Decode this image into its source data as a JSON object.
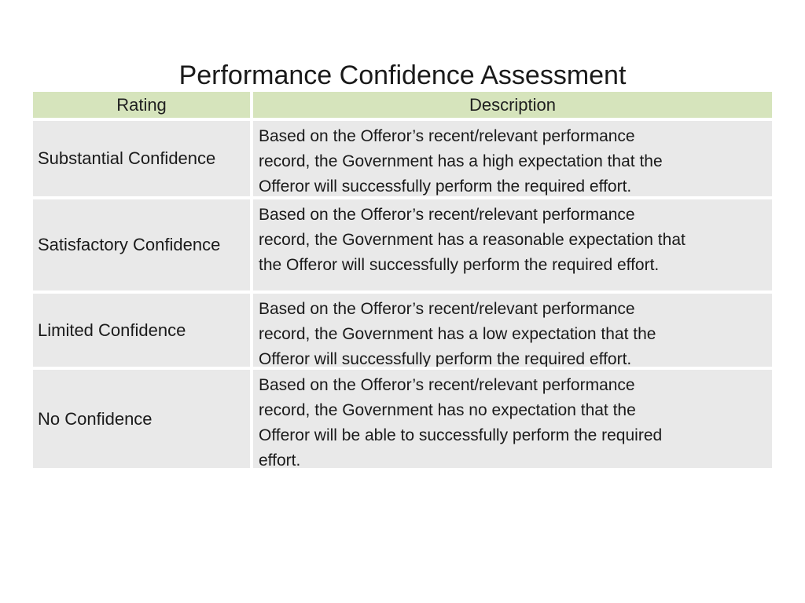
{
  "slide": {
    "title": "Performance Confidence Assessment",
    "table": {
      "headers": {
        "rating": "Rating",
        "description": "Description"
      },
      "rows": [
        {
          "rating": "Substantial Confidence",
          "description": "Based on the Offeror’s recent/relevant performance\nrecord, the Government has a high expectation that the\nOfferor will successfully perform the required effort."
        },
        {
          "rating": "Satisfactory Confidence",
          "description": "Based on the Offeror’s recent/relevant performance\nrecord, the Government has a reasonable expectation that\nthe Offeror will successfully perform the required effort."
        },
        {
          "rating": "Limited Confidence",
          "description": "Based on the Offeror’s recent/relevant performance\nrecord, the Government has a low expectation that the\nOfferor will successfully perform the required effort."
        },
        {
          "rating": "No Confidence",
          "description": "Based on the Offeror’s recent/relevant performance\nrecord, the Government has no expectation that the\nOfferor will be able to successfully perform the required\neffort."
        }
      ]
    },
    "colors": {
      "header_bg": "#D6E4BC",
      "row_bg": "#E9E9E9",
      "text": "#1A1A1A",
      "background": "#FFFFFF"
    }
  }
}
